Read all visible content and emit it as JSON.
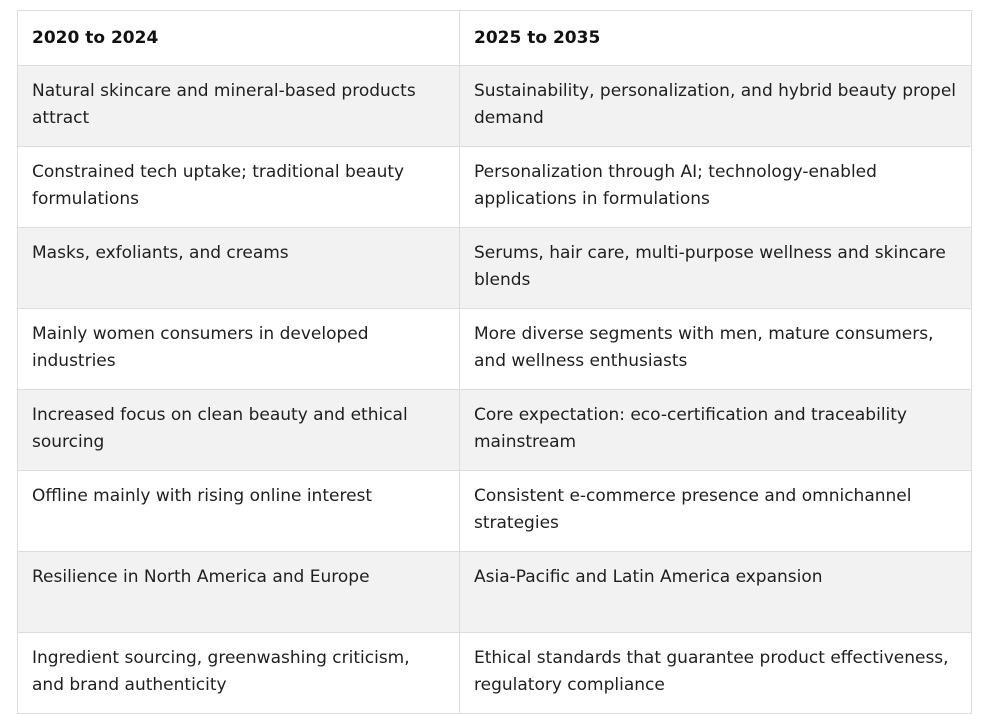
{
  "table": {
    "headers": [
      "2020 to 2024",
      "2025 to 2035"
    ],
    "rows": [
      [
        "Natural skincare and mineral-based products attract",
        "Sustainability, personalization, and hybrid beauty propel demand"
      ],
      [
        "Constrained tech uptake; traditional beauty formulations",
        "Personalization through AI; technology-enabled applications in formulations"
      ],
      [
        "Masks, exfoliants, and creams",
        "Serums, hair care, multi-purpose wellness and skincare blends"
      ],
      [
        "Mainly women consumers in developed industries",
        "More diverse segments with men, mature consumers, and wellness enthusiasts"
      ],
      [
        "Increased focus on clean beauty and ethical sourcing",
        "Core expectation: eco-certification and traceability mainstream"
      ],
      [
        "Offline mainly with rising online interest",
        "Consistent e-commerce presence and omnichannel strategies"
      ],
      [
        "Resilience in North America and Europe",
        "Asia-Pacific and Latin America expansion"
      ],
      [
        "Ingredient sourcing, greenwashing criticism, and brand authenticity",
        "Ethical standards that guarantee product effectiveness, regulatory compliance"
      ]
    ]
  }
}
